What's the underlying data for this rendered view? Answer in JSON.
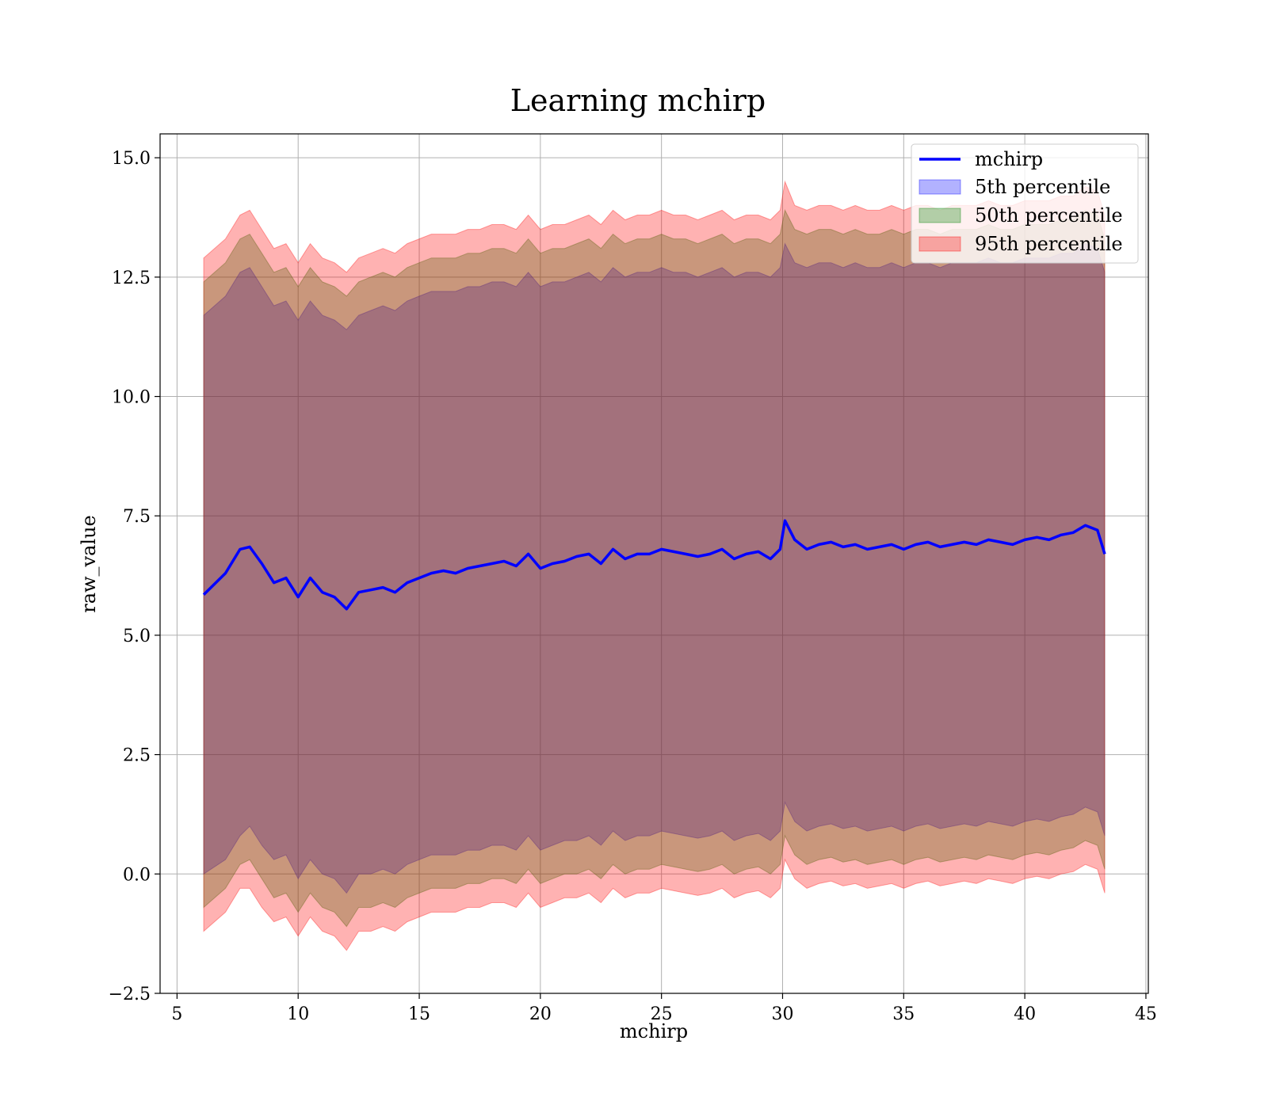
{
  "chart_data": {
    "type": "line",
    "title": "Learning mchirp",
    "xlabel": "mchirp",
    "ylabel": "raw_value",
    "xlim": [
      4.3,
      45.1
    ],
    "ylim": [
      -2.5,
      15.5
    ],
    "xticks": [
      5,
      10,
      15,
      20,
      25,
      30,
      35,
      40,
      45
    ],
    "yticks": [
      -2.5,
      0.0,
      2.5,
      5.0,
      7.5,
      10.0,
      12.5,
      15.0
    ],
    "ytick_labels": [
      "−2.5",
      "0.0",
      "2.5",
      "5.0",
      "7.5",
      "10.0",
      "12.5",
      "15.0"
    ],
    "grid": true,
    "legend_position": "top-right",
    "legend": {
      "line": "mchirp",
      "p5": "5th percentile",
      "p50": "50th percentile",
      "p95": "95th percentile"
    },
    "colors": {
      "line": "#0000ff",
      "p5": "#0000ff",
      "p50": "#008000",
      "p95": "#ff0000"
    },
    "x": [
      6.1,
      7.0,
      7.6,
      8.0,
      8.5,
      9.0,
      9.5,
      10.0,
      10.5,
      11.0,
      11.5,
      12.0,
      12.5,
      13.0,
      13.5,
      14.0,
      14.5,
      15.0,
      15.5,
      16.0,
      16.5,
      17.0,
      17.5,
      18.0,
      18.5,
      19.0,
      19.5,
      20.0,
      20.5,
      21.0,
      21.5,
      22.0,
      22.5,
      23.0,
      23.5,
      24.0,
      24.5,
      25.0,
      25.5,
      26.0,
      26.5,
      27.0,
      27.5,
      28.0,
      28.5,
      29.0,
      29.5,
      29.9,
      30.1,
      30.5,
      31.0,
      31.5,
      32.0,
      32.5,
      33.0,
      33.5,
      34.0,
      34.5,
      35.0,
      35.5,
      36.0,
      36.5,
      37.0,
      37.5,
      38.0,
      38.5,
      39.0,
      39.5,
      40.0,
      40.5,
      41.0,
      41.5,
      42.0,
      42.5,
      43.0,
      43.3
    ],
    "series": [
      {
        "name": "mchirp",
        "y": [
          5.85,
          6.3,
          6.8,
          6.85,
          6.5,
          6.1,
          6.2,
          5.8,
          6.2,
          5.9,
          5.8,
          5.55,
          5.9,
          5.95,
          6.0,
          5.9,
          6.1,
          6.2,
          6.3,
          6.35,
          6.3,
          6.4,
          6.45,
          6.5,
          6.55,
          6.45,
          6.7,
          6.4,
          6.5,
          6.55,
          6.65,
          6.7,
          6.5,
          6.8,
          6.6,
          6.7,
          6.7,
          6.8,
          6.75,
          6.7,
          6.65,
          6.7,
          6.8,
          6.6,
          6.7,
          6.75,
          6.6,
          6.8,
          7.4,
          7.0,
          6.8,
          6.9,
          6.95,
          6.85,
          6.9,
          6.8,
          6.85,
          6.9,
          6.8,
          6.9,
          6.95,
          6.85,
          6.9,
          6.95,
          6.9,
          7.0,
          6.95,
          6.9,
          7.0,
          7.05,
          7.0,
          7.1,
          7.15,
          7.3,
          7.2,
          6.7
        ]
      },
      {
        "name": "5th percentile",
        "lower": [
          0.0,
          0.3,
          0.8,
          1.0,
          0.6,
          0.3,
          0.4,
          -0.1,
          0.3,
          0.0,
          -0.1,
          -0.4,
          0.0,
          0.0,
          0.1,
          0.0,
          0.2,
          0.3,
          0.4,
          0.4,
          0.4,
          0.5,
          0.5,
          0.6,
          0.6,
          0.5,
          0.8,
          0.5,
          0.6,
          0.7,
          0.7,
          0.8,
          0.6,
          0.9,
          0.7,
          0.8,
          0.8,
          0.9,
          0.85,
          0.8,
          0.75,
          0.8,
          0.9,
          0.7,
          0.8,
          0.85,
          0.7,
          0.9,
          1.5,
          1.1,
          0.9,
          1.0,
          1.05,
          0.95,
          1.0,
          0.9,
          0.95,
          1.0,
          0.9,
          1.0,
          1.05,
          0.95,
          1.0,
          1.05,
          1.0,
          1.1,
          1.05,
          1.0,
          1.1,
          1.15,
          1.1,
          1.2,
          1.25,
          1.4,
          1.3,
          0.8
        ],
        "upper": [
          11.7,
          12.1,
          12.6,
          12.7,
          12.3,
          11.9,
          12.0,
          11.6,
          12.0,
          11.7,
          11.6,
          11.4,
          11.7,
          11.8,
          11.9,
          11.8,
          12.0,
          12.1,
          12.2,
          12.2,
          12.2,
          12.3,
          12.3,
          12.4,
          12.4,
          12.3,
          12.6,
          12.3,
          12.4,
          12.4,
          12.5,
          12.6,
          12.4,
          12.7,
          12.5,
          12.6,
          12.6,
          12.7,
          12.6,
          12.6,
          12.5,
          12.6,
          12.7,
          12.5,
          12.6,
          12.6,
          12.5,
          12.7,
          13.2,
          12.8,
          12.7,
          12.8,
          12.8,
          12.7,
          12.8,
          12.7,
          12.7,
          12.8,
          12.7,
          12.8,
          12.8,
          12.7,
          12.8,
          12.8,
          12.8,
          12.9,
          12.8,
          12.8,
          12.9,
          12.9,
          12.9,
          13.0,
          13.0,
          13.2,
          13.1,
          12.6
        ]
      },
      {
        "name": "50th percentile",
        "lower": [
          -0.7,
          -0.3,
          0.2,
          0.3,
          -0.1,
          -0.5,
          -0.4,
          -0.8,
          -0.4,
          -0.7,
          -0.8,
          -1.1,
          -0.7,
          -0.7,
          -0.6,
          -0.7,
          -0.5,
          -0.4,
          -0.3,
          -0.3,
          -0.3,
          -0.2,
          -0.2,
          -0.1,
          -0.1,
          -0.2,
          0.1,
          -0.2,
          -0.1,
          0.0,
          0.0,
          0.1,
          -0.1,
          0.2,
          0.0,
          0.1,
          0.1,
          0.2,
          0.15,
          0.1,
          0.05,
          0.1,
          0.2,
          0.0,
          0.1,
          0.15,
          0.0,
          0.2,
          0.8,
          0.4,
          0.2,
          0.3,
          0.35,
          0.25,
          0.3,
          0.2,
          0.25,
          0.3,
          0.2,
          0.3,
          0.35,
          0.25,
          0.3,
          0.35,
          0.3,
          0.4,
          0.35,
          0.3,
          0.4,
          0.45,
          0.4,
          0.5,
          0.55,
          0.7,
          0.6,
          0.1
        ],
        "upper": [
          12.4,
          12.8,
          13.3,
          13.4,
          13.0,
          12.6,
          12.7,
          12.3,
          12.7,
          12.4,
          12.3,
          12.1,
          12.4,
          12.5,
          12.6,
          12.5,
          12.7,
          12.8,
          12.9,
          12.9,
          12.9,
          13.0,
          13.0,
          13.1,
          13.1,
          13.0,
          13.3,
          13.0,
          13.1,
          13.1,
          13.2,
          13.3,
          13.1,
          13.4,
          13.2,
          13.3,
          13.3,
          13.4,
          13.3,
          13.3,
          13.2,
          13.3,
          13.4,
          13.2,
          13.3,
          13.3,
          13.2,
          13.4,
          13.9,
          13.5,
          13.4,
          13.5,
          13.5,
          13.4,
          13.5,
          13.4,
          13.4,
          13.5,
          13.4,
          13.5,
          13.5,
          13.4,
          13.5,
          13.5,
          13.5,
          13.6,
          13.5,
          13.5,
          13.6,
          13.6,
          13.6,
          13.7,
          13.7,
          13.9,
          13.8,
          13.3
        ]
      },
      {
        "name": "95th percentile",
        "lower": [
          -1.2,
          -0.8,
          -0.3,
          -0.3,
          -0.7,
          -1.0,
          -0.9,
          -1.3,
          -0.9,
          -1.2,
          -1.3,
          -1.6,
          -1.2,
          -1.2,
          -1.1,
          -1.2,
          -1.0,
          -0.9,
          -0.8,
          -0.8,
          -0.8,
          -0.7,
          -0.7,
          -0.6,
          -0.6,
          -0.7,
          -0.4,
          -0.7,
          -0.6,
          -0.5,
          -0.5,
          -0.4,
          -0.6,
          -0.3,
          -0.5,
          -0.4,
          -0.4,
          -0.3,
          -0.35,
          -0.4,
          -0.45,
          -0.4,
          -0.3,
          -0.5,
          -0.4,
          -0.35,
          -0.5,
          -0.3,
          0.3,
          -0.1,
          -0.3,
          -0.2,
          -0.15,
          -0.25,
          -0.2,
          -0.3,
          -0.25,
          -0.2,
          -0.3,
          -0.2,
          -0.15,
          -0.25,
          -0.2,
          -0.15,
          -0.2,
          -0.1,
          -0.15,
          -0.2,
          -0.1,
          -0.05,
          -0.1,
          0.0,
          0.05,
          0.2,
          0.1,
          -0.4
        ],
        "upper": [
          12.9,
          13.3,
          13.8,
          13.9,
          13.5,
          13.1,
          13.2,
          12.8,
          13.2,
          12.9,
          12.8,
          12.6,
          12.9,
          13.0,
          13.1,
          13.0,
          13.2,
          13.3,
          13.4,
          13.4,
          13.4,
          13.5,
          13.5,
          13.6,
          13.6,
          13.5,
          13.8,
          13.5,
          13.6,
          13.6,
          13.7,
          13.8,
          13.6,
          13.9,
          13.7,
          13.8,
          13.8,
          13.9,
          13.8,
          13.8,
          13.7,
          13.8,
          13.9,
          13.7,
          13.8,
          13.8,
          13.7,
          13.9,
          14.5,
          14.0,
          13.9,
          14.0,
          14.0,
          13.9,
          14.0,
          13.9,
          13.9,
          14.0,
          13.9,
          14.0,
          14.0,
          13.9,
          14.0,
          14.0,
          14.0,
          14.1,
          14.0,
          14.0,
          14.1,
          14.1,
          14.1,
          14.2,
          14.2,
          14.4,
          14.3,
          13.8
        ]
      }
    ]
  }
}
